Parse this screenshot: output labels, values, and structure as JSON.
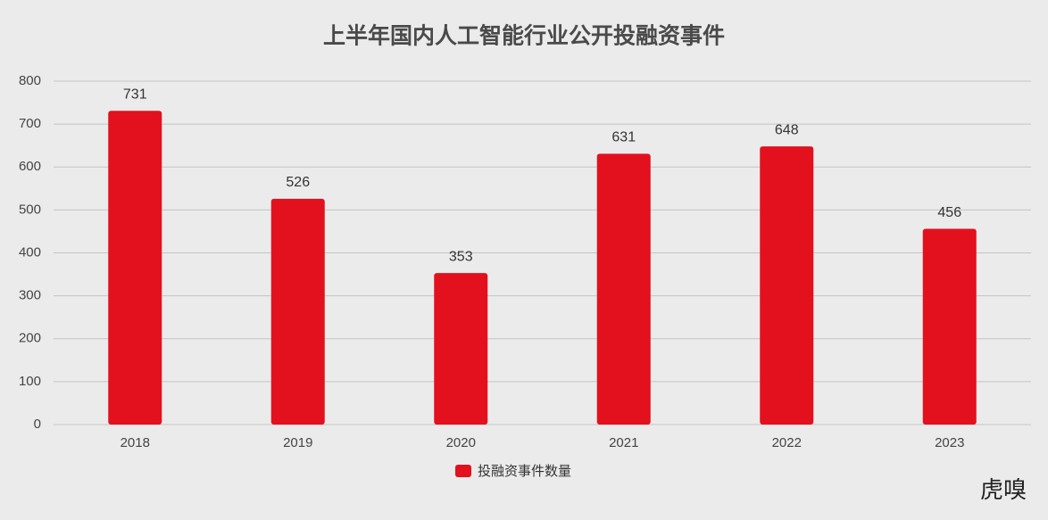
{
  "chart_data": {
    "type": "bar",
    "title": "上半年国内人工智能行业公开投融资事件",
    "categories": [
      "2018",
      "2019",
      "2020",
      "2021",
      "2022",
      "2023"
    ],
    "series": [
      {
        "name": "投融资事件数量",
        "color": "#e3101e",
        "values": [
          731,
          526,
          353,
          631,
          648,
          456
        ]
      }
    ],
    "ylim": [
      0,
      800
    ],
    "yticks": [
      0,
      100,
      200,
      300,
      400,
      500,
      600,
      700,
      800
    ],
    "grid": true,
    "watermark": "虎嗅"
  }
}
